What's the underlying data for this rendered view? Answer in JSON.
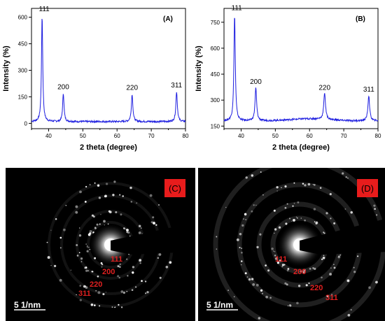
{
  "chart_data": [
    {
      "type": "line",
      "panel_label": "(A)",
      "xlabel": "2 theta (degree)",
      "ylabel": "Intensity (%)",
      "xlim": [
        35,
        80
      ],
      "ylim": [
        -30,
        650
      ],
      "xticks": [
        40,
        50,
        60,
        70,
        80
      ],
      "yticks": [
        0,
        150,
        300,
        450,
        600
      ],
      "color": "#1f1fe0",
      "background": 10,
      "peaks": [
        {
          "x": 38.1,
          "y": 610,
          "width": 0.22,
          "label": "111"
        },
        {
          "x": 44.3,
          "y": 170,
          "width": 0.24,
          "label": "200"
        },
        {
          "x": 64.4,
          "y": 165,
          "width": 0.26,
          "label": "220"
        },
        {
          "x": 77.4,
          "y": 180,
          "width": 0.26,
          "label": "311"
        }
      ]
    },
    {
      "type": "line",
      "panel_label": "(B)",
      "xlabel": "2 theta (degree)",
      "ylabel": "Intensity (%)",
      "xlim": [
        35,
        80
      ],
      "ylim": [
        135,
        830
      ],
      "xticks": [
        40,
        50,
        60,
        70,
        80
      ],
      "yticks": [
        150,
        300,
        450,
        600,
        750
      ],
      "color": "#1f1fe0",
      "background": 180,
      "peaks": [
        {
          "x": 38.1,
          "y": 795,
          "width": 0.24,
          "label": "111"
        },
        {
          "x": 44.3,
          "y": 370,
          "width": 0.28,
          "label": "200"
        },
        {
          "x": 64.4,
          "y": 335,
          "width": 0.3,
          "label": "220"
        },
        {
          "x": 77.3,
          "y": 325,
          "width": 0.3,
          "label": "311"
        }
      ]
    }
  ],
  "saed": [
    {
      "label": "(C)",
      "scale": "5 1/nm",
      "rings": [
        "111",
        "200",
        "220",
        "311"
      ]
    },
    {
      "label": "(D)",
      "scale": "5 1/nm",
      "rings": [
        "111",
        "200",
        "220",
        "311"
      ]
    }
  ],
  "colors": {
    "line": "#1f1fe0",
    "label_red": "#e02020",
    "label_box": "#e81c1c"
  }
}
